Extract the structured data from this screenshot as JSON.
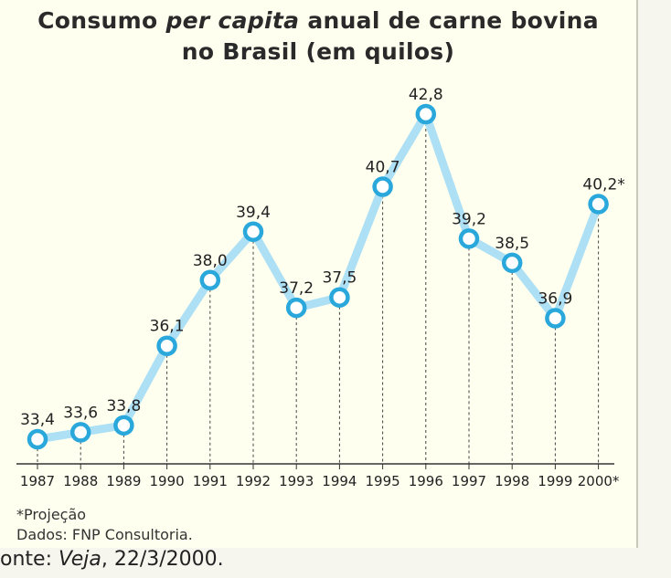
{
  "title": {
    "pre": "Consumo ",
    "italic": "per capita",
    "post": " anual de carne bovina",
    "line2": "no Brasil (em quilos)"
  },
  "chart_data": {
    "type": "line",
    "categories": [
      "1987",
      "1988",
      "1989",
      "1990",
      "1991",
      "1992",
      "1993",
      "1994",
      "1995",
      "1996",
      "1997",
      "1998",
      "1999",
      "2000*"
    ],
    "values": [
      33.4,
      33.6,
      33.8,
      36.1,
      38.0,
      39.4,
      37.2,
      37.5,
      40.7,
      42.8,
      39.2,
      38.5,
      36.9,
      40.2
    ],
    "value_labels": [
      "33,4",
      "33,6",
      "33,8",
      "36,1",
      "38,0",
      "39,4",
      "37,2",
      "37,5",
      "40,7",
      "42,8",
      "39,2",
      "38,5",
      "36,9",
      "40,2*"
    ],
    "line_color": "#aee0f5",
    "marker_color": "#2aa8dc",
    "grid": false
  },
  "notes": {
    "projection": "*Projeção",
    "data_source": "Dados: FNP Consultoria."
  },
  "source": {
    "prefix": "onte: ",
    "publication": "Veja",
    "date": ", 22/3/2000."
  }
}
